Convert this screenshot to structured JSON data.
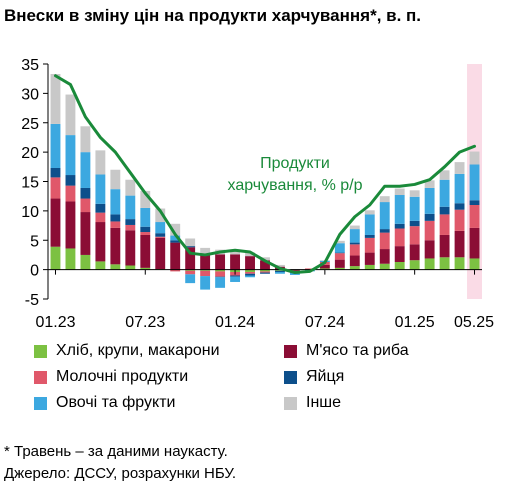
{
  "title": "Внески в зміну цін на продукти харчування*, в. п.",
  "footnote": {
    "line1": "* Травень – за даними наукасту.",
    "line2": "Джерело: ДССУ, розрахунки НБУ."
  },
  "chart_data": {
    "type": "bar",
    "stacked": true,
    "ylim": [
      -5,
      35
    ],
    "yticks": [
      -5,
      0,
      5,
      10,
      15,
      20,
      25,
      30,
      35
    ],
    "grid": false,
    "x": [
      "01.23",
      "02.23",
      "03.23",
      "04.23",
      "05.23",
      "06.23",
      "07.23",
      "08.23",
      "09.23",
      "10.23",
      "11.23",
      "12.23",
      "01.24",
      "02.24",
      "03.24",
      "04.24",
      "05.24",
      "06.24",
      "07.24",
      "08.24",
      "09.24",
      "10.24",
      "11.24",
      "12.24",
      "01.25",
      "02.25",
      "03.25",
      "04.25",
      "05.25"
    ],
    "xtick_labels": [
      "01.23",
      "07.23",
      "01.24",
      "07.24",
      "01.25",
      "05.25"
    ],
    "highlight_category": "05.25",
    "series": [
      {
        "name": "Хліб, крупи, макарони",
        "color": "#7cc142",
        "values": [
          3.9,
          3.6,
          2.5,
          1.4,
          0.9,
          0.7,
          0.3,
          0.1,
          0.0,
          -0.2,
          -0.2,
          -0.3,
          -0.4,
          -0.4,
          -0.3,
          -0.2,
          -0.1,
          0.0,
          0.2,
          0.3,
          0.6,
          0.8,
          1.0,
          1.3,
          1.6,
          1.9,
          2.1,
          2.1,
          1.9
        ]
      },
      {
        "name": "М'ясо та риба",
        "color": "#8b0d35",
        "values": [
          8.2,
          8.0,
          7.3,
          6.7,
          6.2,
          6.0,
          5.6,
          5.3,
          4.6,
          3.8,
          2.6,
          2.6,
          2.6,
          2.3,
          1.6,
          0.5,
          -0.2,
          0.0,
          0.6,
          1.4,
          1.8,
          2.1,
          2.5,
          2.7,
          2.7,
          3.1,
          3.8,
          4.5,
          5.2
        ]
      },
      {
        "name": "Молочні продукти",
        "color": "#e0586a",
        "values": [
          3.6,
          2.7,
          2.3,
          1.6,
          1.1,
          0.9,
          0.5,
          0.2,
          -0.3,
          -0.6,
          -0.9,
          -0.9,
          -0.6,
          -0.3,
          -0.2,
          0.0,
          0.0,
          0.2,
          0.5,
          1.1,
          1.9,
          2.5,
          2.8,
          3.0,
          3.1,
          3.3,
          3.5,
          3.6,
          3.9
        ]
      },
      {
        "name": "Яйця",
        "color": "#0d4f8b",
        "values": [
          1.6,
          1.8,
          1.8,
          1.5,
          1.2,
          1.0,
          0.9,
          0.6,
          0.4,
          0.2,
          0.1,
          -0.1,
          -0.2,
          -0.3,
          -0.2,
          -0.2,
          -0.1,
          0.0,
          0.0,
          0.1,
          0.3,
          0.5,
          0.6,
          0.8,
          0.9,
          1.2,
          1.3,
          1.1,
          0.8
        ]
      },
      {
        "name": "Овочі та фрукти",
        "color": "#3ca8e0",
        "values": [
          7.5,
          6.8,
          6.1,
          5.0,
          4.3,
          4.0,
          3.2,
          1.9,
          0.8,
          -1.5,
          -2.3,
          -1.8,
          -0.9,
          -0.3,
          0.0,
          -0.3,
          -0.5,
          -0.3,
          0.2,
          1.6,
          2.3,
          3.5,
          4.6,
          4.9,
          4.1,
          4.4,
          4.6,
          5.0,
          6.1
        ]
      },
      {
        "name": "Інше",
        "color": "#c8c8c8",
        "values": [
          8.5,
          6.9,
          4.4,
          4.1,
          3.3,
          2.7,
          2.9,
          2.3,
          2.0,
          1.3,
          1.0,
          0.8,
          0.5,
          0.6,
          0.5,
          0.3,
          0.1,
          0.0,
          0.1,
          0.4,
          0.6,
          0.7,
          1.0,
          1.1,
          1.1,
          1.3,
          1.6,
          2.0,
          2.2
        ]
      }
    ],
    "line": {
      "name": "Продукти харчування, % р/р",
      "color": "#1a8a3a",
      "values": [
        33.0,
        31.5,
        26.0,
        22.5,
        20.0,
        16.5,
        13.0,
        10.0,
        6.0,
        2.8,
        2.5,
        3.0,
        3.3,
        3.0,
        1.5,
        0.2,
        -0.5,
        -0.3,
        1.2,
        6.0,
        9.0,
        11.0,
        14.2,
        14.2,
        14.5,
        15.3,
        17.5,
        20.0,
        21.0
      ]
    },
    "annotation": {
      "line1": "Продукти",
      "line2": "харчування, % р/р"
    }
  }
}
